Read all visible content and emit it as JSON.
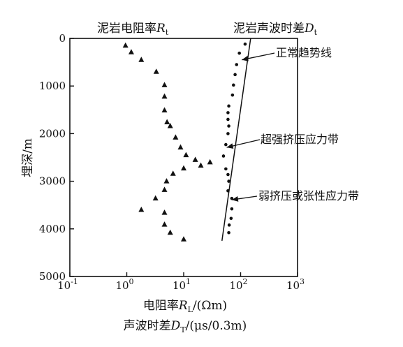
{
  "chart_data": {
    "type": "scatter",
    "title": "",
    "x_scale": "log",
    "xlim": [
      0.1,
      1000
    ],
    "ylim": [
      0,
      5000
    ],
    "y_inverted": true,
    "grid": false,
    "xticks": [
      {
        "value": 0.1,
        "base": "10",
        "exp": "-1"
      },
      {
        "value": 1,
        "base": "10",
        "exp": "0"
      },
      {
        "value": 10,
        "base": "10",
        "exp": "1"
      },
      {
        "value": 100,
        "base": "10",
        "exp": "2"
      },
      {
        "value": 1000,
        "base": "10",
        "exp": "3"
      }
    ],
    "yticks": [
      "0",
      "1000",
      "2000",
      "3000",
      "4000",
      "5000"
    ],
    "ylabel": "埋深/m",
    "xlabel_line1": {
      "prefix": "电阻率",
      "var": "R",
      "sub": "L",
      "unit": "/(Ωm)"
    },
    "xlabel_line2": {
      "prefix": "声波时差",
      "var": "D",
      "sub": "T",
      "unit": "/(μs/0.3m)"
    },
    "top_labels": [
      {
        "prefix": "泥岩电阻率",
        "var": "R",
        "sub": "t"
      },
      {
        "prefix": "泥岩声波时差",
        "var": "D",
        "sub": "t"
      }
    ],
    "series": [
      {
        "marker": "triangle",
        "points": [
          {
            "x": 0.95,
            "y": 150
          },
          {
            "x": 1.2,
            "y": 290
          },
          {
            "x": 1.8,
            "y": 450
          },
          {
            "x": 3.3,
            "y": 700
          },
          {
            "x": 4.6,
            "y": 980
          },
          {
            "x": 4.6,
            "y": 1220
          },
          {
            "x": 4.6,
            "y": 1510
          },
          {
            "x": 5.1,
            "y": 1760
          },
          {
            "x": 5.8,
            "y": 1840
          },
          {
            "x": 7.2,
            "y": 2080
          },
          {
            "x": 8.8,
            "y": 2290
          },
          {
            "x": 11.0,
            "y": 2450
          },
          {
            "x": 16.0,
            "y": 2550
          },
          {
            "x": 20.0,
            "y": 2670
          },
          {
            "x": 29.0,
            "y": 2600
          },
          {
            "x": 10.0,
            "y": 2730
          },
          {
            "x": 6.5,
            "y": 2840
          },
          {
            "x": 5.0,
            "y": 3000
          },
          {
            "x": 4.6,
            "y": 3180
          },
          {
            "x": 3.2,
            "y": 3360
          },
          {
            "x": 1.8,
            "y": 3600
          },
          {
            "x": 4.6,
            "y": 3660
          },
          {
            "x": 4.6,
            "y": 3910
          },
          {
            "x": 5.8,
            "y": 4080
          },
          {
            "x": 10.0,
            "y": 4220
          }
        ]
      },
      {
        "marker": "dot",
        "points": [
          {
            "x": 120,
            "y": 120
          },
          {
            "x": 95,
            "y": 310
          },
          {
            "x": 85,
            "y": 550
          },
          {
            "x": 80,
            "y": 760
          },
          {
            "x": 75,
            "y": 980
          },
          {
            "x": 72,
            "y": 1190
          },
          {
            "x": 62,
            "y": 1420
          },
          {
            "x": 60,
            "y": 1560
          },
          {
            "x": 60,
            "y": 1700
          },
          {
            "x": 62,
            "y": 1840
          },
          {
            "x": 60,
            "y": 2000
          },
          {
            "x": 55,
            "y": 2230
          },
          {
            "x": 50,
            "y": 2470
          },
          {
            "x": 55,
            "y": 2740
          },
          {
            "x": 60,
            "y": 2860
          },
          {
            "x": 62,
            "y": 3000
          },
          {
            "x": 60,
            "y": 3200
          },
          {
            "x": 70,
            "y": 3360
          },
          {
            "x": 70,
            "y": 3580
          },
          {
            "x": 68,
            "y": 3780
          },
          {
            "x": 63,
            "y": 3920
          },
          {
            "x": 62,
            "y": 4080
          }
        ]
      }
    ],
    "trend_line": {
      "x1": 150,
      "y1": 0,
      "x2": 47,
      "y2": 4250
    },
    "annotations": [
      {
        "text": "正常趋势线",
        "target": {
          "x": 105,
          "y": 450
        }
      },
      {
        "text": "超强挤压应力带",
        "target": {
          "x": 57,
          "y": 2290
        }
      },
      {
        "text": "弱挤压或张性应力带",
        "target": {
          "x": 70,
          "y": 3390
        }
      }
    ]
  }
}
